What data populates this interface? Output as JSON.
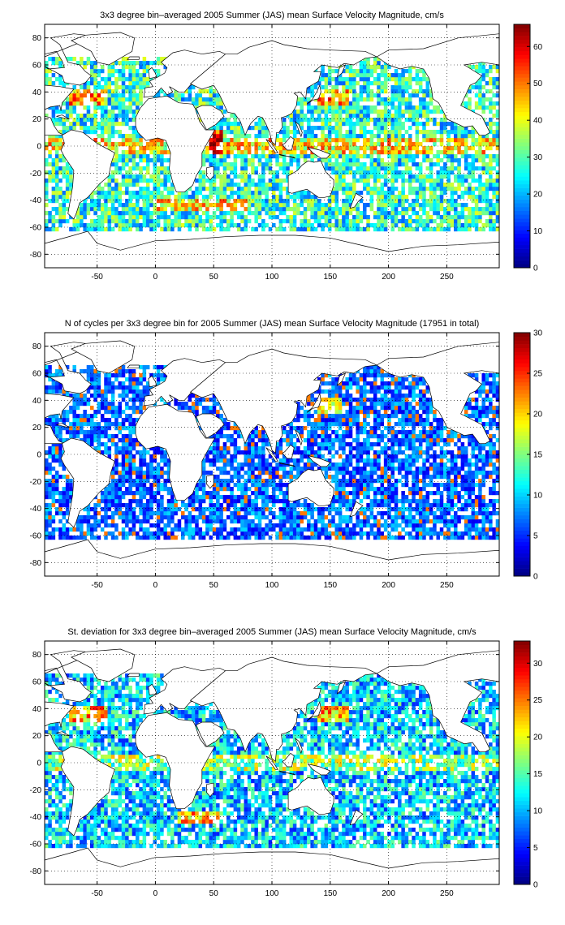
{
  "chart_data": [
    {
      "type": "heatmap",
      "title": "3x3 degree bin–averaged 2005 Summer (JAS) mean Surface Velocity Magnitude, cm/s",
      "xlim": [
        -95,
        295
      ],
      "ylim": [
        -90,
        90
      ],
      "x_ticks": [
        -50,
        0,
        50,
        100,
        150,
        200,
        250
      ],
      "y_ticks": [
        80,
        60,
        40,
        20,
        0,
        -20,
        -40,
        -60,
        -80
      ],
      "grid": true,
      "colorbar": {
        "colormap": "jet",
        "min": 0,
        "max": 66,
        "ticks": [
          0,
          10,
          20,
          30,
          40,
          50,
          60
        ]
      },
      "bin_size_deg": 3,
      "field": "mean_speed"
    },
    {
      "type": "heatmap",
      "title": "N of cycles per 3x3 degree bin for 2005 Summer (JAS) mean Surface Velocity Magnitude (17951 in total)",
      "xlim": [
        -95,
        295
      ],
      "ylim": [
        -90,
        90
      ],
      "x_ticks": [
        -50,
        0,
        50,
        100,
        150,
        200,
        250
      ],
      "y_ticks": [
        80,
        60,
        40,
        20,
        0,
        -20,
        -40,
        -60,
        -80
      ],
      "grid": true,
      "colorbar": {
        "colormap": "jet",
        "min": 0,
        "max": 30,
        "ticks": [
          0,
          5,
          10,
          15,
          20,
          25,
          30
        ]
      },
      "bin_size_deg": 3,
      "field": "count"
    },
    {
      "type": "heatmap",
      "title": "St. deviation for 3x3 degree bin–averaged 2005 Summer (JAS) mean Surface Velocity Magnitude, cm/s",
      "xlim": [
        -95,
        295
      ],
      "ylim": [
        -90,
        90
      ],
      "x_ticks": [
        -50,
        0,
        50,
        100,
        150,
        200,
        250
      ],
      "y_ticks": [
        80,
        60,
        40,
        20,
        0,
        -20,
        -40,
        -60,
        -80
      ],
      "grid": true,
      "colorbar": {
        "colormap": "jet",
        "min": 0,
        "max": 33,
        "ticks": [
          0,
          5,
          10,
          15,
          20,
          25,
          30
        ]
      },
      "bin_size_deg": 3,
      "field": "std_speed"
    }
  ]
}
